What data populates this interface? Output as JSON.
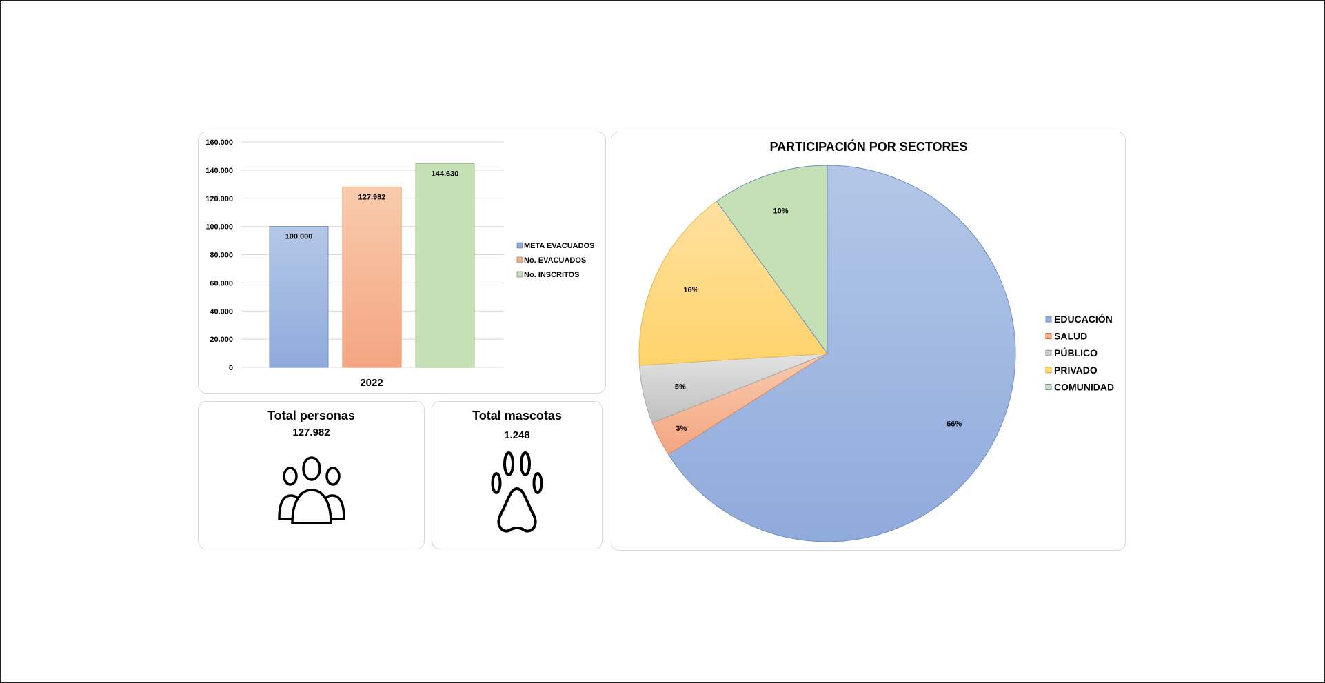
{
  "chart_data": [
    {
      "type": "bar",
      "categories": [
        "2022"
      ],
      "series": [
        {
          "name": "META EVACUADOS",
          "values": [
            100000
          ],
          "label": "100.000"
        },
        {
          "name": "No. EVACUADOS",
          "values": [
            127982
          ],
          "label": "127.982"
        },
        {
          "name": "No. INSCRITOS",
          "values": [
            144630
          ],
          "label": "144.630"
        }
      ],
      "yticks": [
        "0",
        "20.000",
        "40.000",
        "60.000",
        "80.000",
        "100.000",
        "120.000",
        "140.000",
        "160.000"
      ],
      "ylim": [
        0,
        160000
      ],
      "grid": true,
      "legend": "right",
      "title": "",
      "xlabel": "",
      "ylabel": ""
    },
    {
      "type": "pie",
      "title": "PARTICIPACIÓN POR SECTORES",
      "slices": [
        {
          "name": "EDUCACIÓN",
          "value": 66,
          "label": "66%"
        },
        {
          "name": "SALUD",
          "value": 3,
          "label": "3%"
        },
        {
          "name": "PÚBLICO",
          "value": 5,
          "label": "5%"
        },
        {
          "name": "PRIVADO",
          "value": 16,
          "label": "16%"
        },
        {
          "name": "COMUNIDAD",
          "value": 10,
          "label": "10%"
        }
      ],
      "legend": "right"
    }
  ],
  "colors": {
    "meta": "#8FAADC",
    "evacuados": "#F4B183",
    "inscritos": "#C5E0B4",
    "educacion": "#8FAADC",
    "salud": "#F4B183",
    "publico": "#C9C9C9",
    "privado": "#FFD966",
    "comunidad": "#C5E0B4"
  },
  "kpis": {
    "persons": {
      "title": "Total personas",
      "value": "127.982",
      "icon": "people-group-icon"
    },
    "pets": {
      "title": "Total mascotas",
      "value": "1.248",
      "icon": "paw-icon"
    }
  }
}
